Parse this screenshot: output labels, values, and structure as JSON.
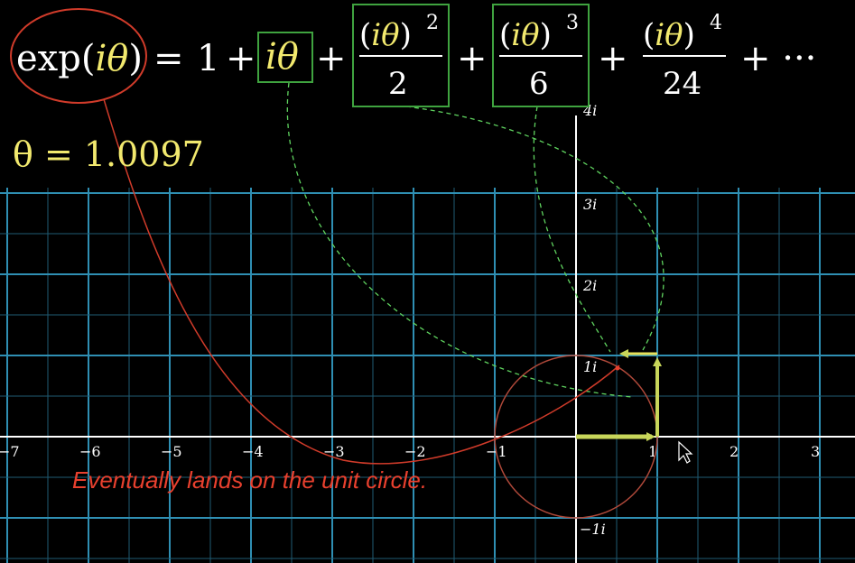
{
  "equation": {
    "lhs": "exp(iθ)",
    "eq": "=",
    "one": "1",
    "plus": "+",
    "term1": "iθ",
    "term2_num": "(iθ)",
    "term2_exp": "2",
    "term2_den": "2",
    "term3_num": "(iθ)",
    "term3_exp": "3",
    "term3_den": "6",
    "term4_num": "(iθ)",
    "term4_exp": "4",
    "term4_den": "24",
    "ellipsis": "+ ···"
  },
  "theta_readout": "θ = 1.0097",
  "theta_value": 1.0097,
  "caption": "Eventually lands on the unit circle.",
  "plane": {
    "x_ticks": [
      "−7",
      "−6",
      "−5",
      "−4",
      "−3",
      "−2",
      "−1",
      "1",
      "2",
      "3"
    ],
    "x_tick_values": [
      -7,
      -6,
      -5,
      -4,
      -3,
      -2,
      -1,
      1,
      2,
      3
    ],
    "y_ticks": [
      "4i",
      "3i",
      "2i",
      "1i",
      "−1i"
    ],
    "y_tick_values": [
      4,
      3,
      2,
      1,
      -1
    ]
  },
  "colors": {
    "highlight_box": "#3fa33f",
    "theta_yellow": "#f2e96e",
    "vector_green": "#c8d65a",
    "circle_red": "#b0493a",
    "caption_red": "#e8402e",
    "grid_blue": "#2f8fb3"
  }
}
